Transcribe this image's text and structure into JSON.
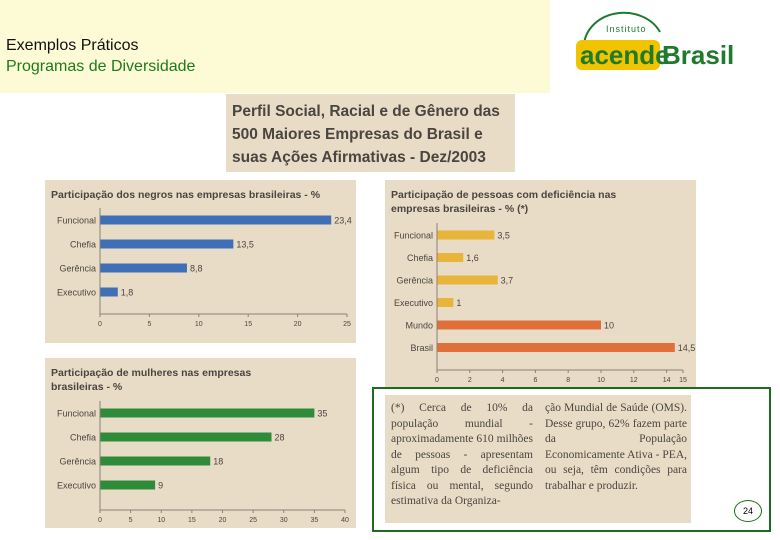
{
  "header": {
    "line1": "Exemplos Práticos",
    "line2": "Programas de Diversidade"
  },
  "logo": {
    "small": "Instituto",
    "word1": "acende",
    "word2": "Brasil",
    "color_green": "#1f7a2c",
    "color_yellow": "#f2c400"
  },
  "main_title": {
    "line1": "Perfil Social, Racial e de Gênero das",
    "line2": "500 Maiores Empresas do Brasil e",
    "line3": "suas Ações Afirmativas - Dez/2003"
  },
  "chart_data": [
    {
      "id": "negros",
      "type": "bar",
      "orientation": "horizontal",
      "title_lines": [
        "Participação dos negros nas empresas brasileiras - %"
      ],
      "categories": [
        "Funcional",
        "Chefia",
        "Gerência",
        "Executivo"
      ],
      "values": [
        23.4,
        13.5,
        8.8,
        1.8
      ],
      "value_labels": [
        "23,4",
        "13,5",
        "8,8",
        "1,8"
      ],
      "xlim": [
        0,
        25
      ],
      "ticks": [
        0,
        5,
        10,
        15,
        20,
        25
      ],
      "color": "#3f6fb6"
    },
    {
      "id": "deficiencia",
      "type": "bar",
      "orientation": "horizontal",
      "title_lines": [
        "Participação de pessoas com deficiência nas",
        "empresas brasileiras - % (*)"
      ],
      "categories": [
        "Funcional",
        "Chefia",
        "Gerência",
        "Executivo",
        "Mundo",
        "Brasil"
      ],
      "values": [
        3.5,
        1.6,
        3.7,
        1,
        10,
        14.5
      ],
      "value_labels": [
        "3,5",
        "1,6",
        "3,7",
        "1",
        "10",
        "14,5"
      ],
      "colors": [
        "#e8b53a",
        "#e8b53a",
        "#e8b53a",
        "#e8b53a",
        "#e0703a",
        "#e0703a"
      ],
      "xlim": [
        0,
        15
      ],
      "ticks": [
        0,
        2,
        4,
        6,
        8,
        10,
        12,
        14,
        15
      ]
    },
    {
      "id": "mulheres",
      "type": "bar",
      "orientation": "horizontal",
      "title_lines": [
        "Participação de mulheres nas empresas",
        "brasileiras - %"
      ],
      "categories": [
        "Funcional",
        "Chefia",
        "Gerência",
        "Executivo"
      ],
      "values": [
        35,
        28,
        18,
        9
      ],
      "value_labels": [
        "35",
        "28",
        "18",
        "9"
      ],
      "xlim": [
        0,
        40
      ],
      "ticks": [
        0,
        5,
        10,
        15,
        20,
        25,
        30,
        35,
        40
      ],
      "color": "#2e8b3a"
    }
  ],
  "note": {
    "col1": "(*) Cerca de 10% da população mundial - aproximadamente 610 milhões de pessoas - apresentam algum tipo de deficiência física ou mental, segundo estimativa da Organiza-",
    "col2": "ção Mundial de Saúde (OMS). Desse grupo, 62% fazem parte da População Economicamente Ativa - PEA, ou seja, têm condições para trabalhar e produzir."
  },
  "page_number": "24"
}
